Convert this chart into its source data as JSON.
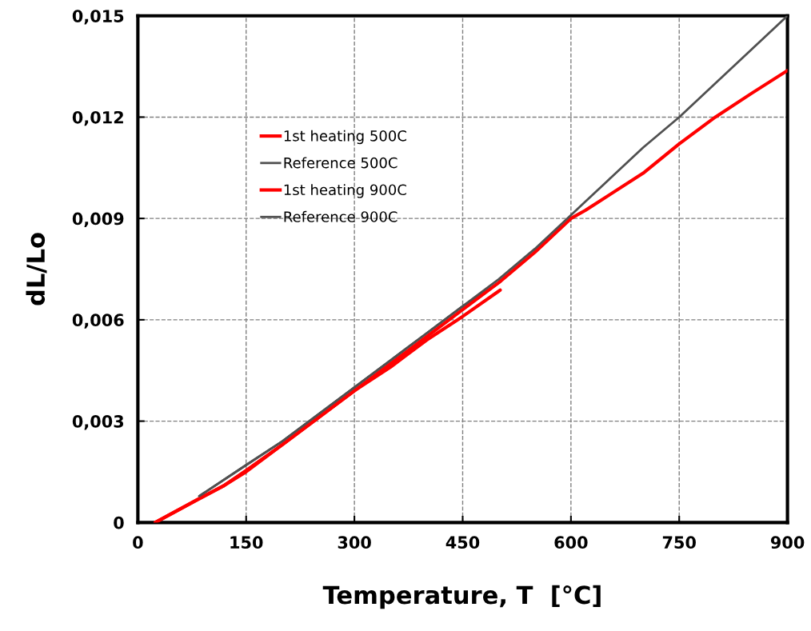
{
  "chart_data": {
    "type": "line",
    "xlabel": "Temperature, T  [°C]",
    "ylabel": "dL/Lo",
    "xlim": [
      0,
      900
    ],
    "ylim": [
      0,
      0.015
    ],
    "xticks": [
      0,
      150,
      300,
      450,
      600,
      750,
      900
    ],
    "yticks": [
      0,
      {
        "value": 0.003,
        "label": "0,003"
      },
      {
        "value": 0.006,
        "label": "0,006"
      },
      {
        "value": 0.009,
        "label": "0,009"
      },
      {
        "value": 0.012,
        "label": "0,012"
      },
      {
        "value": 0.015,
        "label": "0,015"
      }
    ],
    "grid": true,
    "legend": "top left",
    "marker": "none",
    "line_style": "solid",
    "series": [
      {
        "name": "1st heating 500C",
        "color": "#ff0000",
        "x": [
          24,
          50,
          85,
          120,
          150,
          200,
          250,
          300,
          350,
          400,
          450,
          502
        ],
        "values": [
          0,
          0.0003,
          0.00071,
          0.0011,
          0.00154,
          0.0023,
          0.0031,
          0.0039,
          0.0046,
          0.0054,
          0.0061,
          0.00688
        ]
      },
      {
        "name": "Reference 500C",
        "color": "#505050",
        "x": [
          85,
          150,
          200,
          250,
          300,
          350,
          400,
          450,
          503
        ],
        "values": [
          0.00078,
          0.0017,
          0.0024,
          0.0032,
          0.004,
          0.0048,
          0.0056,
          0.0064,
          0.00714
        ]
      },
      {
        "name": "1st heating 900C",
        "color": "#ff0000",
        "x": [
          24,
          50,
          85,
          120,
          150,
          200,
          250,
          300,
          350,
          400,
          450,
          500,
          550,
          600,
          620,
          700,
          750,
          800,
          850,
          900
        ],
        "values": [
          0,
          0.0003,
          0.0007,
          0.0011,
          0.0015,
          0.0023,
          0.0031,
          0.0039,
          0.0047,
          0.0055,
          0.0063,
          0.0071,
          0.008,
          0.009,
          0.00924,
          0.01034,
          0.01121,
          0.012,
          0.0127,
          0.01338
        ]
      },
      {
        "name": "Reference 900C",
        "color": "#505050",
        "x": [
          85,
          150,
          200,
          250,
          300,
          350,
          400,
          450,
          500,
          550,
          600,
          650,
          700,
          750,
          800,
          850,
          900
        ],
        "values": [
          0.00078,
          0.0017,
          0.0024,
          0.0032,
          0.004,
          0.0048,
          0.0056,
          0.0064,
          0.0072,
          0.0081,
          0.0091,
          0.0101,
          0.0111,
          0.012,
          0.013,
          0.014,
          0.015
        ]
      }
    ]
  }
}
